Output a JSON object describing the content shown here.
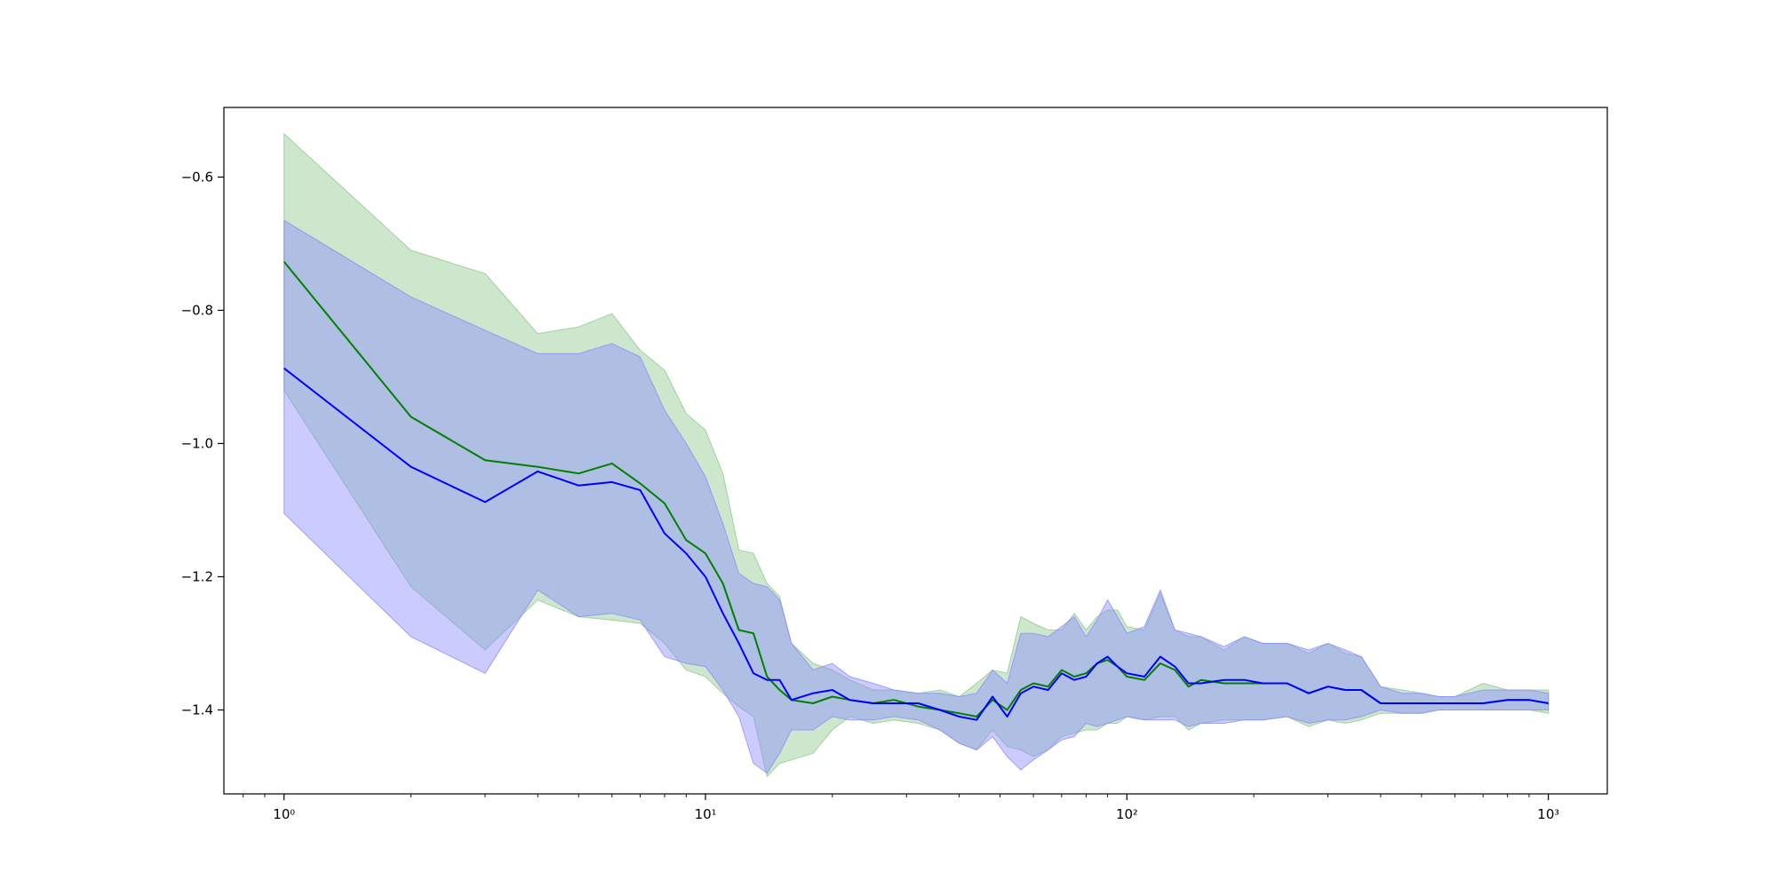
{
  "chart_data": {
    "type": "line",
    "title": "",
    "xlabel": "",
    "ylabel": "",
    "xscale": "log",
    "xlim": [
      0.72,
      1380
    ],
    "ylim": [
      -1.526,
      -0.4955
    ],
    "grid": false,
    "xticks": [
      {
        "value": 1,
        "label": "10⁰"
      },
      {
        "value": 10,
        "label": "10¹"
      },
      {
        "value": 100,
        "label": "10²"
      },
      {
        "value": 1000,
        "label": "10³"
      }
    ],
    "yticks": [
      {
        "value": -0.6,
        "label": "−0.6"
      },
      {
        "value": -0.8,
        "label": "−0.8"
      },
      {
        "value": -1.0,
        "label": "−1.0"
      },
      {
        "value": -1.2,
        "label": "−1.2"
      },
      {
        "value": -1.4,
        "label": "−1.4"
      }
    ],
    "series": [
      {
        "color": "#008000",
        "band_color": "#90c990",
        "band_opacity": 0.45,
        "x": [
          1,
          2,
          3,
          4,
          5,
          6,
          7,
          8,
          9,
          10,
          11,
          12,
          13,
          14,
          15,
          16,
          18,
          20,
          22,
          25,
          28,
          32,
          36,
          40,
          44,
          48,
          52,
          56,
          60,
          65,
          70,
          75,
          80,
          85,
          90,
          95,
          100,
          110,
          120,
          130,
          140,
          150,
          170,
          190,
          210,
          240,
          270,
          300,
          330,
          360,
          400,
          450,
          500,
          550,
          600,
          700,
          800,
          900,
          1000
        ],
        "y": [
          -0.727,
          -0.96,
          -1.025,
          -1.035,
          -1.045,
          -1.03,
          -1.06,
          -1.09,
          -1.145,
          -1.165,
          -1.21,
          -1.28,
          -1.285,
          -1.35,
          -1.37,
          -1.385,
          -1.39,
          -1.38,
          -1.385,
          -1.39,
          -1.385,
          -1.395,
          -1.4,
          -1.405,
          -1.41,
          -1.385,
          -1.4,
          -1.37,
          -1.36,
          -1.365,
          -1.34,
          -1.35,
          -1.345,
          -1.33,
          -1.325,
          -1.335,
          -1.35,
          -1.355,
          -1.33,
          -1.34,
          -1.365,
          -1.355,
          -1.36,
          -1.36,
          -1.36,
          -1.36,
          -1.375,
          -1.365,
          -1.37,
          -1.37,
          -1.39,
          -1.39,
          -1.39,
          -1.39,
          -1.39,
          -1.39,
          -1.385,
          -1.385,
          -1.39
        ],
        "upper": [
          -0.535,
          -0.71,
          -0.745,
          -0.835,
          -0.825,
          -0.805,
          -0.86,
          -0.89,
          -0.955,
          -0.98,
          -1.045,
          -1.16,
          -1.165,
          -1.21,
          -1.23,
          -1.3,
          -1.33,
          -1.34,
          -1.355,
          -1.37,
          -1.37,
          -1.375,
          -1.37,
          -1.38,
          -1.36,
          -1.34,
          -1.345,
          -1.26,
          -1.27,
          -1.28,
          -1.28,
          -1.255,
          -1.28,
          -1.26,
          -1.25,
          -1.25,
          -1.275,
          -1.28,
          -1.225,
          -1.28,
          -1.29,
          -1.29,
          -1.31,
          -1.29,
          -1.3,
          -1.3,
          -1.315,
          -1.3,
          -1.315,
          -1.32,
          -1.365,
          -1.37,
          -1.375,
          -1.38,
          -1.38,
          -1.36,
          -1.37,
          -1.37,
          -1.37
        ],
        "lower": [
          -0.92,
          -1.215,
          -1.31,
          -1.235,
          -1.26,
          -1.265,
          -1.27,
          -1.3,
          -1.34,
          -1.35,
          -1.375,
          -1.395,
          -1.41,
          -1.5,
          -1.48,
          -1.475,
          -1.465,
          -1.43,
          -1.41,
          -1.42,
          -1.415,
          -1.42,
          -1.43,
          -1.45,
          -1.46,
          -1.43,
          -1.455,
          -1.46,
          -1.47,
          -1.46,
          -1.44,
          -1.435,
          -1.43,
          -1.43,
          -1.42,
          -1.42,
          -1.41,
          -1.415,
          -1.41,
          -1.41,
          -1.43,
          -1.42,
          -1.415,
          -1.415,
          -1.415,
          -1.41,
          -1.425,
          -1.415,
          -1.42,
          -1.415,
          -1.405,
          -1.405,
          -1.405,
          -1.4,
          -1.4,
          -1.4,
          -1.4,
          -1.4,
          -1.405
        ]
      },
      {
        "color": "#0000ff",
        "band_color": "#8c8cff",
        "band_opacity": 0.45,
        "x": [
          1,
          2,
          3,
          4,
          5,
          6,
          7,
          8,
          9,
          10,
          11,
          12,
          13,
          14,
          15,
          16,
          18,
          20,
          22,
          25,
          28,
          32,
          36,
          40,
          44,
          48,
          52,
          56,
          60,
          65,
          70,
          75,
          80,
          85,
          90,
          95,
          100,
          110,
          120,
          130,
          140,
          150,
          170,
          190,
          210,
          240,
          270,
          300,
          330,
          360,
          400,
          450,
          500,
          550,
          600,
          700,
          800,
          900,
          1000
        ],
        "y": [
          -0.887,
          -1.035,
          -1.088,
          -1.042,
          -1.063,
          -1.058,
          -1.07,
          -1.135,
          -1.165,
          -1.2,
          -1.255,
          -1.3,
          -1.345,
          -1.355,
          -1.355,
          -1.385,
          -1.375,
          -1.37,
          -1.385,
          -1.39,
          -1.39,
          -1.39,
          -1.4,
          -1.41,
          -1.415,
          -1.38,
          -1.41,
          -1.375,
          -1.365,
          -1.37,
          -1.345,
          -1.355,
          -1.35,
          -1.33,
          -1.32,
          -1.335,
          -1.345,
          -1.35,
          -1.32,
          -1.335,
          -1.36,
          -1.36,
          -1.355,
          -1.355,
          -1.36,
          -1.36,
          -1.375,
          -1.365,
          -1.37,
          -1.37,
          -1.39,
          -1.39,
          -1.39,
          -1.39,
          -1.39,
          -1.39,
          -1.385,
          -1.385,
          -1.39
        ],
        "upper": [
          -0.665,
          -0.78,
          -0.83,
          -0.865,
          -0.865,
          -0.85,
          -0.87,
          -0.95,
          -1.0,
          -1.05,
          -1.12,
          -1.195,
          -1.21,
          -1.215,
          -1.235,
          -1.3,
          -1.34,
          -1.33,
          -1.35,
          -1.36,
          -1.37,
          -1.375,
          -1.375,
          -1.38,
          -1.375,
          -1.34,
          -1.36,
          -1.285,
          -1.285,
          -1.29,
          -1.275,
          -1.26,
          -1.29,
          -1.265,
          -1.235,
          -1.26,
          -1.285,
          -1.275,
          -1.22,
          -1.28,
          -1.285,
          -1.29,
          -1.305,
          -1.29,
          -1.3,
          -1.3,
          -1.31,
          -1.3,
          -1.31,
          -1.32,
          -1.365,
          -1.375,
          -1.375,
          -1.38,
          -1.38,
          -1.37,
          -1.37,
          -1.37,
          -1.375
        ],
        "lower": [
          -1.105,
          -1.29,
          -1.345,
          -1.22,
          -1.26,
          -1.255,
          -1.265,
          -1.32,
          -1.33,
          -1.335,
          -1.37,
          -1.41,
          -1.48,
          -1.495,
          -1.465,
          -1.43,
          -1.43,
          -1.41,
          -1.415,
          -1.415,
          -1.41,
          -1.415,
          -1.43,
          -1.45,
          -1.46,
          -1.44,
          -1.47,
          -1.49,
          -1.475,
          -1.46,
          -1.445,
          -1.44,
          -1.42,
          -1.425,
          -1.42,
          -1.415,
          -1.41,
          -1.415,
          -1.415,
          -1.415,
          -1.425,
          -1.42,
          -1.42,
          -1.415,
          -1.415,
          -1.41,
          -1.42,
          -1.415,
          -1.415,
          -1.41,
          -1.4,
          -1.405,
          -1.405,
          -1.4,
          -1.4,
          -1.4,
          -1.4,
          -1.4,
          -1.4
        ]
      }
    ]
  }
}
